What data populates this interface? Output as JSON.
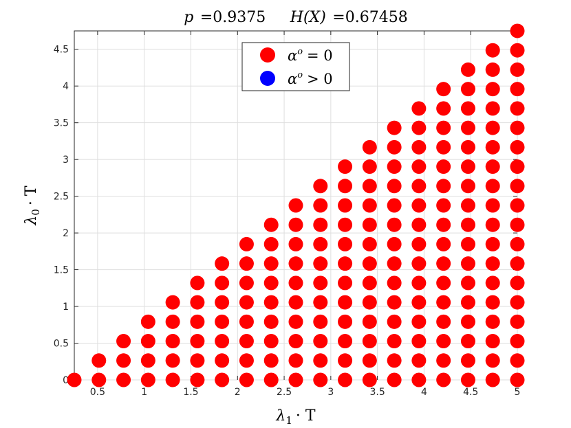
{
  "chart_data": {
    "type": "scatter",
    "title": "p =0.9375    H(X) =0.67458",
    "xlabel": "λ1 · T",
    "ylabel": "λ0 · T",
    "xlim": [
      0.25,
      5.0
    ],
    "ylim": [
      0,
      4.75
    ],
    "x_ticks": [
      "0.5",
      "1",
      "1.5",
      "2",
      "2.5",
      "3",
      "3.5",
      "4",
      "4.5",
      "5"
    ],
    "y_ticks": [
      "0",
      "0.5",
      "1",
      "1.5",
      "2",
      "2.5",
      "3",
      "3.5",
      "4",
      "4.5"
    ],
    "grid": true,
    "legend_position": "top-center",
    "series": [
      {
        "name": "α^o = 0",
        "color": "#ff0000",
        "points": "grid lattice: x = 0.25, 0.5, ..., 5.0 (step 0.2639); y = 0, 0.2639, ..., up to x − 0.25 (every point with y ≤ x − 0.25)",
        "x_values": [
          0.25,
          0.5139,
          0.7778,
          1.0417,
          1.3056,
          1.5694,
          1.8333,
          2.0972,
          2.3611,
          2.625,
          2.8889,
          3.1528,
          3.4167,
          3.6806,
          3.9444,
          4.2083,
          4.4722,
          4.7361,
          5.0
        ]
      },
      {
        "name": "α^o > 0",
        "color": "#0000ff",
        "x_values": []
      }
    ]
  },
  "title": {
    "p_label": "p",
    "p_value": "=0.9375",
    "h_label": "H(X)",
    "h_value": "=0.67458"
  },
  "legend": {
    "entry_red": {
      "label": "α",
      "sup": "o",
      "rel": "= 0",
      "color": "#ff0000"
    },
    "entry_blue": {
      "label": "α",
      "sup": "o",
      "rel": "> 0",
      "color": "#0000ff"
    }
  },
  "axes": {
    "xlabel_main": "λ",
    "xlabel_sub": "1",
    "xlabel_rest": "· T",
    "ylabel_main": "λ",
    "ylabel_sub": "0",
    "ylabel_rest": "· T"
  }
}
